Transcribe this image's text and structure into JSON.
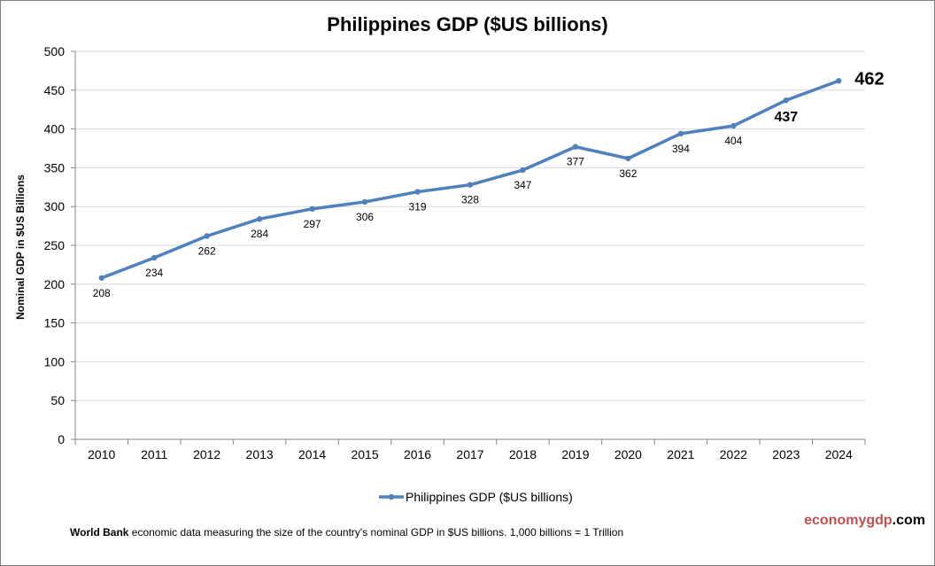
{
  "chart_data": {
    "type": "line",
    "title": "Philippines GDP ($US billions)",
    "xlabel": "",
    "ylabel": "Nominal GDP in $US  Billions",
    "categories": [
      "2010",
      "2011",
      "2012",
      "2013",
      "2014",
      "2015",
      "2016",
      "2017",
      "2018",
      "2019",
      "2020",
      "2021",
      "2022",
      "2023",
      "2024"
    ],
    "series": [
      {
        "name": "Philippines GDP ($US billions)",
        "values": [
          208,
          234,
          262,
          284,
          297,
          306,
          319,
          328,
          347,
          377,
          362,
          394,
          404,
          437,
          462
        ],
        "labels": [
          "208",
          "234",
          "262",
          "284",
          "297",
          "306",
          "319",
          "328",
          "347",
          "377",
          "362",
          "394",
          "404",
          "437",
          "462"
        ],
        "color": "#4f81bd"
      }
    ],
    "ylim": [
      0,
      500
    ],
    "yticks": [
      "0",
      "50",
      "100",
      "150",
      "200",
      "250",
      "300",
      "350",
      "400",
      "450",
      "500"
    ],
    "grid": true,
    "legend": "bottom",
    "gridline_color": "#d9d9d9"
  },
  "footnote": {
    "source": "World Bank",
    "text": " economic data  measuring the size of the country's nominal GDP in $US billions. 1,000 billions = 1 Trillion"
  },
  "brand": {
    "part1": "economygdp",
    "part2": ".com"
  }
}
